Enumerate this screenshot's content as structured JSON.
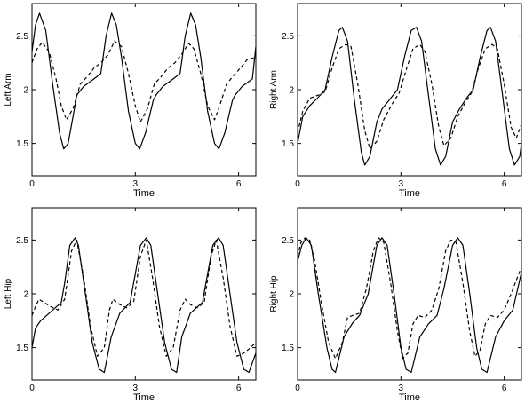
{
  "chart_data": [
    {
      "type": "line",
      "ylabel": "Left Arm",
      "xlabel": "Time",
      "xlim": [
        0,
        6.5
      ],
      "ylim": [
        1.2,
        2.8
      ],
      "xticks": [
        0,
        3,
        6
      ],
      "yticks": [
        1.5,
        2,
        2.5
      ],
      "grid": false,
      "legend": "none",
      "series": [
        {
          "style": "solid",
          "x": [
            0,
            0.1,
            0.22,
            0.4,
            0.6,
            0.8,
            0.92,
            1.05,
            1.22,
            1.3,
            1.5,
            1.8,
            2.0,
            2.15,
            2.31,
            2.45,
            2.6,
            2.8,
            3.0,
            3.13,
            3.3,
            3.52,
            3.6,
            3.8,
            4.1,
            4.3,
            4.45,
            4.61,
            4.75,
            4.9,
            5.1,
            5.3,
            5.43,
            5.6,
            5.82,
            5.9,
            6.1,
            6.4,
            6.5
          ],
          "y": [
            2.35,
            2.6,
            2.71,
            2.55,
            2.05,
            1.6,
            1.45,
            1.5,
            1.8,
            1.95,
            2.03,
            2.1,
            2.15,
            2.5,
            2.71,
            2.6,
            2.3,
            1.8,
            1.5,
            1.45,
            1.6,
            1.9,
            1.95,
            2.03,
            2.1,
            2.15,
            2.5,
            2.71,
            2.6,
            2.3,
            1.8,
            1.5,
            1.45,
            1.6,
            1.9,
            1.95,
            2.03,
            2.1,
            2.4
          ]
        },
        {
          "style": "dashed",
          "x": [
            0,
            0.15,
            0.3,
            0.5,
            0.7,
            0.85,
            1.0,
            1.2,
            1.4,
            1.6,
            1.8,
            2.0,
            2.2,
            2.4,
            2.6,
            2.8,
            3.0,
            3.15,
            3.35,
            3.55,
            3.75,
            3.95,
            4.15,
            4.35,
            4.55,
            4.7,
            4.9,
            5.1,
            5.3,
            5.45,
            5.65,
            5.85,
            6.05,
            6.25,
            6.5
          ],
          "y": [
            2.25,
            2.38,
            2.44,
            2.35,
            2.1,
            1.85,
            1.72,
            1.83,
            2.05,
            2.12,
            2.2,
            2.25,
            2.32,
            2.45,
            2.4,
            2.15,
            1.85,
            1.7,
            1.82,
            2.05,
            2.12,
            2.2,
            2.25,
            2.33,
            2.43,
            2.38,
            2.15,
            1.85,
            1.72,
            1.85,
            2.05,
            2.13,
            2.2,
            2.28,
            2.3
          ]
        }
      ]
    },
    {
      "type": "line",
      "ylabel": "Right Arm",
      "xlabel": "Time",
      "xlim": [
        0,
        6.5
      ],
      "ylim": [
        1.2,
        2.8
      ],
      "xticks": [
        0,
        3,
        6
      ],
      "yticks": [
        1.5,
        2,
        2.5
      ],
      "grid": false,
      "legend": "none",
      "series": [
        {
          "style": "solid",
          "x": [
            0,
            0.15,
            0.35,
            0.6,
            0.8,
            1.0,
            1.2,
            1.3,
            1.45,
            1.65,
            1.85,
            1.95,
            2.1,
            2.3,
            2.45,
            2.7,
            2.9,
            3.1,
            3.3,
            3.45,
            3.6,
            3.8,
            4.0,
            4.15,
            4.3,
            4.5,
            4.7,
            4.9,
            5.1,
            5.3,
            5.5,
            5.6,
            5.75,
            5.95,
            6.15,
            6.3,
            6.45,
            6.5
          ],
          "y": [
            1.5,
            1.75,
            1.85,
            1.93,
            2.0,
            2.3,
            2.55,
            2.58,
            2.45,
            1.9,
            1.42,
            1.3,
            1.38,
            1.7,
            1.82,
            1.92,
            2.0,
            2.3,
            2.55,
            2.58,
            2.45,
            1.95,
            1.45,
            1.3,
            1.38,
            1.7,
            1.82,
            1.92,
            2.0,
            2.3,
            2.55,
            2.58,
            2.45,
            1.95,
            1.45,
            1.3,
            1.38,
            1.5
          ]
        },
        {
          "style": "dashed",
          "x": [
            0,
            0.15,
            0.35,
            0.6,
            0.8,
            1.0,
            1.2,
            1.4,
            1.55,
            1.75,
            1.95,
            2.1,
            2.3,
            2.5,
            2.75,
            2.95,
            3.15,
            3.35,
            3.55,
            3.7,
            3.9,
            4.1,
            4.25,
            4.45,
            4.65,
            4.85,
            5.05,
            5.25,
            5.45,
            5.65,
            5.8,
            6.0,
            6.2,
            6.35,
            6.5
          ],
          "y": [
            1.6,
            1.8,
            1.92,
            1.95,
            1.98,
            2.2,
            2.38,
            2.42,
            2.4,
            2.05,
            1.62,
            1.45,
            1.52,
            1.72,
            1.87,
            1.97,
            2.18,
            2.38,
            2.42,
            2.35,
            2.05,
            1.65,
            1.48,
            1.55,
            1.75,
            1.87,
            1.97,
            2.2,
            2.38,
            2.42,
            2.38,
            2.05,
            1.65,
            1.55,
            1.68
          ]
        }
      ]
    },
    {
      "type": "line",
      "ylabel": "Left Hip",
      "xlabel": "Time",
      "xlim": [
        0,
        6.5
      ],
      "ylim": [
        1.2,
        2.8
      ],
      "xticks": [
        0,
        3,
        6
      ],
      "yticks": [
        1.5,
        2,
        2.5
      ],
      "grid": false,
      "legend": "none",
      "series": [
        {
          "style": "solid",
          "x": [
            0,
            0.1,
            0.25,
            0.5,
            0.85,
            0.95,
            1.1,
            1.25,
            1.35,
            1.55,
            1.75,
            1.95,
            2.1,
            2.3,
            2.55,
            2.85,
            2.95,
            3.15,
            3.32,
            3.45,
            3.65,
            3.85,
            4.05,
            4.2,
            4.35,
            4.6,
            4.95,
            5.05,
            5.25,
            5.42,
            5.55,
            5.75,
            5.95,
            6.15,
            6.3,
            6.5
          ],
          "y": [
            1.5,
            1.68,
            1.75,
            1.82,
            1.92,
            2.1,
            2.45,
            2.52,
            2.45,
            2.0,
            1.55,
            1.3,
            1.27,
            1.6,
            1.82,
            1.92,
            2.1,
            2.45,
            2.52,
            2.45,
            2.0,
            1.55,
            1.3,
            1.27,
            1.6,
            1.82,
            1.92,
            2.1,
            2.45,
            2.52,
            2.45,
            2.0,
            1.55,
            1.3,
            1.27,
            1.45
          ]
        },
        {
          "style": "dashed",
          "x": [
            0,
            0.1,
            0.2,
            0.35,
            0.55,
            0.75,
            0.95,
            1.15,
            1.3,
            1.5,
            1.7,
            1.9,
            2.1,
            2.25,
            2.35,
            2.55,
            2.75,
            2.95,
            3.15,
            3.32,
            3.5,
            3.7,
            3.9,
            4.1,
            4.3,
            4.45,
            4.6,
            4.8,
            5.0,
            5.2,
            5.35,
            5.55,
            5.75,
            5.95,
            6.15,
            6.35,
            6.5
          ],
          "y": [
            1.8,
            1.88,
            1.95,
            1.92,
            1.88,
            1.85,
            1.95,
            2.4,
            2.5,
            2.15,
            1.7,
            1.42,
            1.5,
            1.85,
            1.95,
            1.9,
            1.87,
            1.92,
            2.35,
            2.5,
            2.15,
            1.7,
            1.42,
            1.5,
            1.85,
            1.95,
            1.9,
            1.87,
            1.92,
            2.35,
            2.5,
            2.15,
            1.7,
            1.42,
            1.45,
            1.5,
            1.55
          ]
        }
      ]
    },
    {
      "type": "line",
      "ylabel": "Right Hip",
      "xlabel": "Time",
      "xlim": [
        0,
        6.5
      ],
      "ylim": [
        1.2,
        2.8
      ],
      "xticks": [
        0,
        3,
        6
      ],
      "yticks": [
        1.5,
        2,
        2.5
      ],
      "grid": false,
      "legend": "none",
      "series": [
        {
          "style": "solid",
          "x": [
            0,
            0.12,
            0.25,
            0.4,
            0.6,
            0.85,
            1.0,
            1.1,
            1.35,
            1.6,
            1.8,
            2.05,
            2.3,
            2.45,
            2.6,
            2.8,
            3.0,
            3.15,
            3.3,
            3.55,
            3.8,
            4.05,
            4.25,
            4.5,
            4.65,
            4.8,
            5.0,
            5.2,
            5.35,
            5.5,
            5.75,
            6.0,
            6.25,
            6.5
          ],
          "y": [
            2.3,
            2.45,
            2.52,
            2.45,
            2.0,
            1.5,
            1.3,
            1.27,
            1.6,
            1.73,
            1.8,
            2.0,
            2.45,
            2.52,
            2.45,
            2.0,
            1.5,
            1.3,
            1.27,
            1.6,
            1.72,
            1.8,
            2.05,
            2.45,
            2.52,
            2.45,
            2.0,
            1.5,
            1.3,
            1.27,
            1.6,
            1.75,
            1.85,
            2.2
          ]
        },
        {
          "style": "dashed",
          "x": [
            0,
            0.1,
            0.22,
            0.35,
            0.5,
            0.7,
            0.9,
            1.1,
            1.3,
            1.45,
            1.6,
            1.8,
            2.0,
            2.2,
            2.35,
            2.5,
            2.7,
            2.9,
            3.05,
            3.2,
            3.35,
            3.5,
            3.7,
            3.9,
            4.1,
            4.3,
            4.45,
            4.6,
            4.8,
            5.0,
            5.15,
            5.3,
            5.45,
            5.6,
            5.8,
            6.0,
            6.2,
            6.5
          ],
          "y": [
            2.35,
            2.48,
            2.52,
            2.5,
            2.3,
            1.9,
            1.55,
            1.4,
            1.55,
            1.78,
            1.8,
            1.82,
            2.05,
            2.4,
            2.52,
            2.48,
            2.1,
            1.65,
            1.4,
            1.45,
            1.72,
            1.8,
            1.78,
            1.85,
            2.05,
            2.4,
            2.5,
            2.48,
            2.1,
            1.65,
            1.42,
            1.48,
            1.72,
            1.8,
            1.78,
            1.85,
            2.0,
            2.25
          ]
        }
      ]
    }
  ]
}
